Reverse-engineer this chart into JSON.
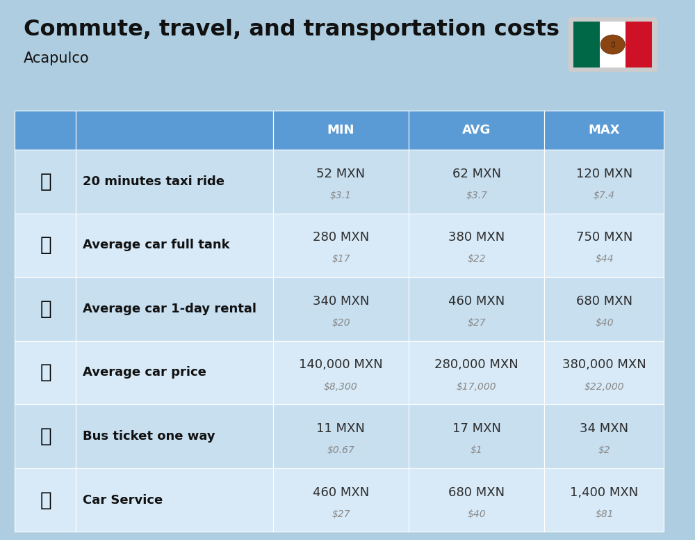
{
  "title": "Commute, travel, and transportation costs",
  "subtitle": "Acapulco",
  "bg_color": "#aecde0",
  "header_color": "#5b9bd5",
  "row_bg_odd": "#c8dff0",
  "row_bg_even": "#d8eaf7",
  "header_text_color": "#ffffff",
  "label_text_color": "#111111",
  "value_text_color": "#2c2c2c",
  "sub_value_color": "#888888",
  "col_headers": [
    "MIN",
    "AVG",
    "MAX"
  ],
  "rows": [
    {
      "label": "20 minutes taxi ride",
      "min_mxn": "52 MXN",
      "min_usd": "$3.1",
      "avg_mxn": "62 MXN",
      "avg_usd": "$3.7",
      "max_mxn": "120 MXN",
      "max_usd": "$7.4"
    },
    {
      "label": "Average car full tank",
      "min_mxn": "280 MXN",
      "min_usd": "$17",
      "avg_mxn": "380 MXN",
      "avg_usd": "$22",
      "max_mxn": "750 MXN",
      "max_usd": "$44"
    },
    {
      "label": "Average car 1-day rental",
      "min_mxn": "340 MXN",
      "min_usd": "$20",
      "avg_mxn": "460 MXN",
      "avg_usd": "$27",
      "max_mxn": "680 MXN",
      "max_usd": "$40"
    },
    {
      "label": "Average car price",
      "min_mxn": "140,000 MXN",
      "min_usd": "$8,300",
      "avg_mxn": "280,000 MXN",
      "avg_usd": "$17,000",
      "max_mxn": "380,000 MXN",
      "max_usd": "$22,000"
    },
    {
      "label": "Bus ticket one way",
      "min_mxn": "11 MXN",
      "min_usd": "$0.67",
      "avg_mxn": "17 MXN",
      "avg_usd": "$1",
      "max_mxn": "34 MXN",
      "max_usd": "$2"
    },
    {
      "label": "Car Service",
      "min_mxn": "460 MXN",
      "min_usd": "$27",
      "avg_mxn": "680 MXN",
      "avg_usd": "$40",
      "max_mxn": "1,400 MXN",
      "max_usd": "$81"
    }
  ],
  "title_fontsize": 23,
  "subtitle_fontsize": 15,
  "header_fontsize": 13,
  "label_fontsize": 13,
  "value_fontsize": 13,
  "sub_value_fontsize": 10,
  "flag_green": "#006847",
  "flag_white": "#ffffff",
  "flag_red": "#ce1126"
}
